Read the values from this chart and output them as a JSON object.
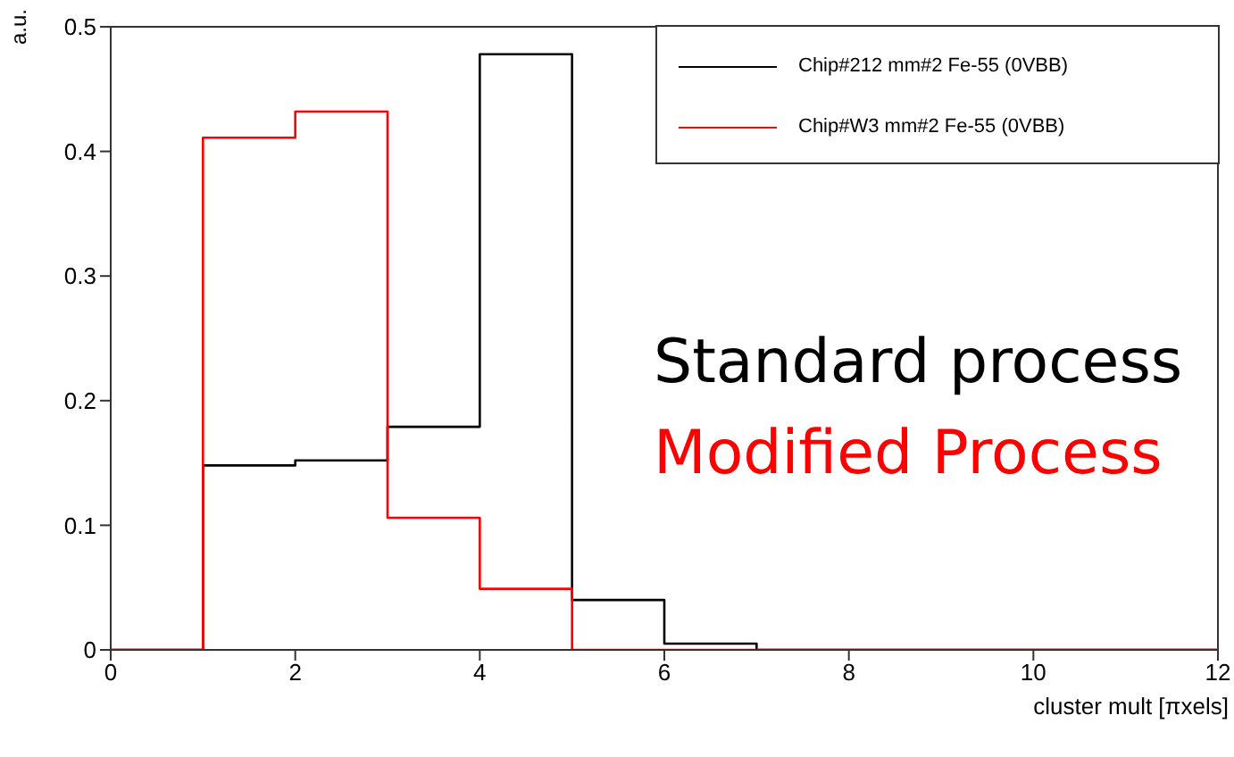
{
  "chart_data": {
    "type": "histogram",
    "xlabel": "cluster mult [πxels]",
    "ylabel": "a.u.",
    "bins": [
      0,
      1,
      2,
      3,
      4,
      5,
      6,
      7,
      8,
      9,
      10,
      11,
      12
    ],
    "series": [
      {
        "name": "Chip#212 mm#2 Fe-55 (0VBB)",
        "color": "#000000",
        "values": [
          0,
          0.148,
          0.152,
          0.179,
          0.478,
          0.04,
          0.005,
          0,
          0,
          0,
          0,
          0
        ]
      },
      {
        "name": "Chip#W3 mm#2 Fe-55 (0VBB)",
        "color": "#ff0000",
        "values": [
          0,
          0.411,
          0.432,
          0.106,
          0.049,
          0,
          0,
          0,
          0,
          0,
          0,
          0
        ]
      }
    ],
    "xlim": [
      0,
      12
    ],
    "xticks": [
      0,
      2,
      4,
      6,
      8,
      10,
      12
    ],
    "ylim": [
      0,
      0.5
    ],
    "yticks": [
      0,
      0.1,
      0.2,
      0.3,
      0.4,
      0.5
    ],
    "legend": "top right",
    "grid": false,
    "annotations": [
      "Standard process",
      "Modified Process"
    ]
  }
}
